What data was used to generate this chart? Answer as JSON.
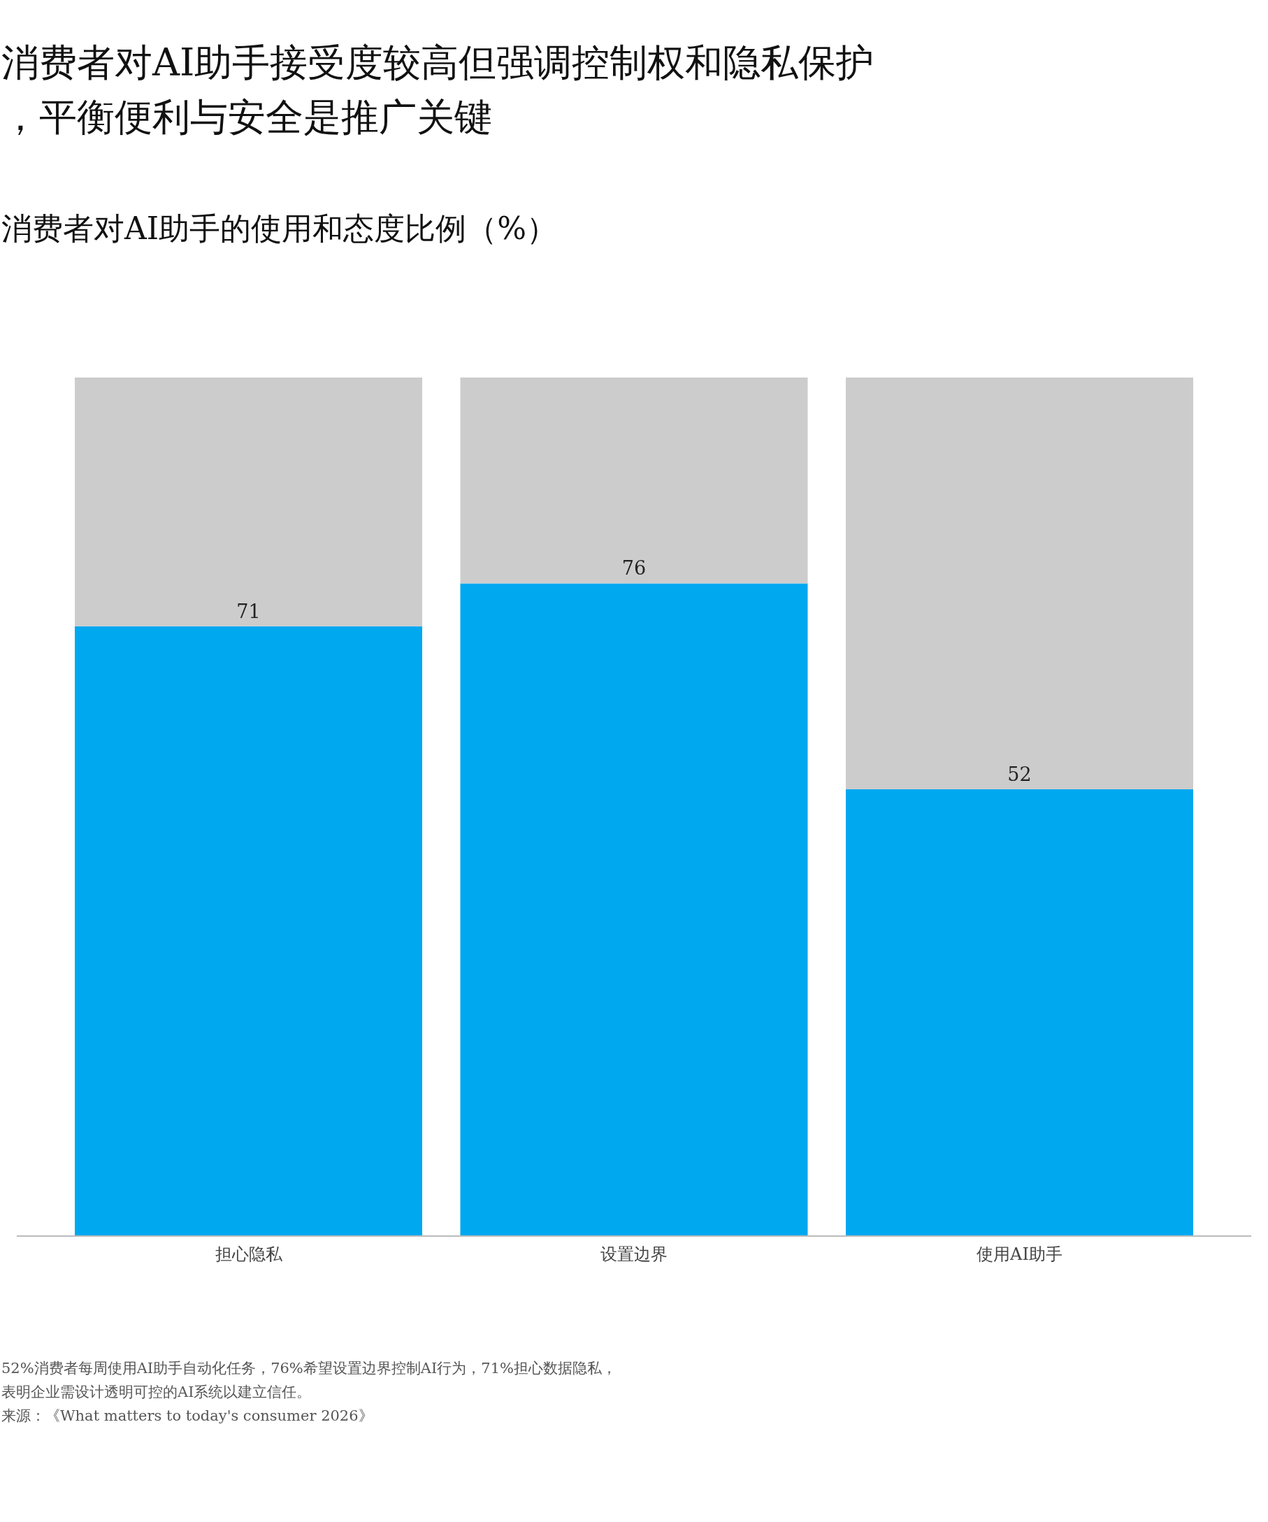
{
  "chart_data": {
    "type": "bar",
    "title": "消费者对AI助手接受度较高但强调控制权和隐私保护，平衡便利与安全是推广关键",
    "subtitle": "消费者对AI助手的使用和态度比例（%）",
    "categories": [
      "担心隐私",
      "设置边界",
      "使用AI助手"
    ],
    "stacked": true,
    "series": [
      {
        "color": "#00a8f0",
        "values": [
          71,
          76,
          52
        ],
        "value_labels": [
          "71",
          "76",
          "52"
        ]
      },
      {
        "color": "#cccccc",
        "values": [
          29,
          24,
          48
        ]
      }
    ],
    "annotations": [
      "52%消费者每周使用AI助手自动化任务，76%希望设置边界控制AI行为，71%担心数据隐私，",
      "表明企业需设计透明可控的AI系统以建立信任。",
      "来源：《What matters to today's consumer 2026》"
    ]
  }
}
